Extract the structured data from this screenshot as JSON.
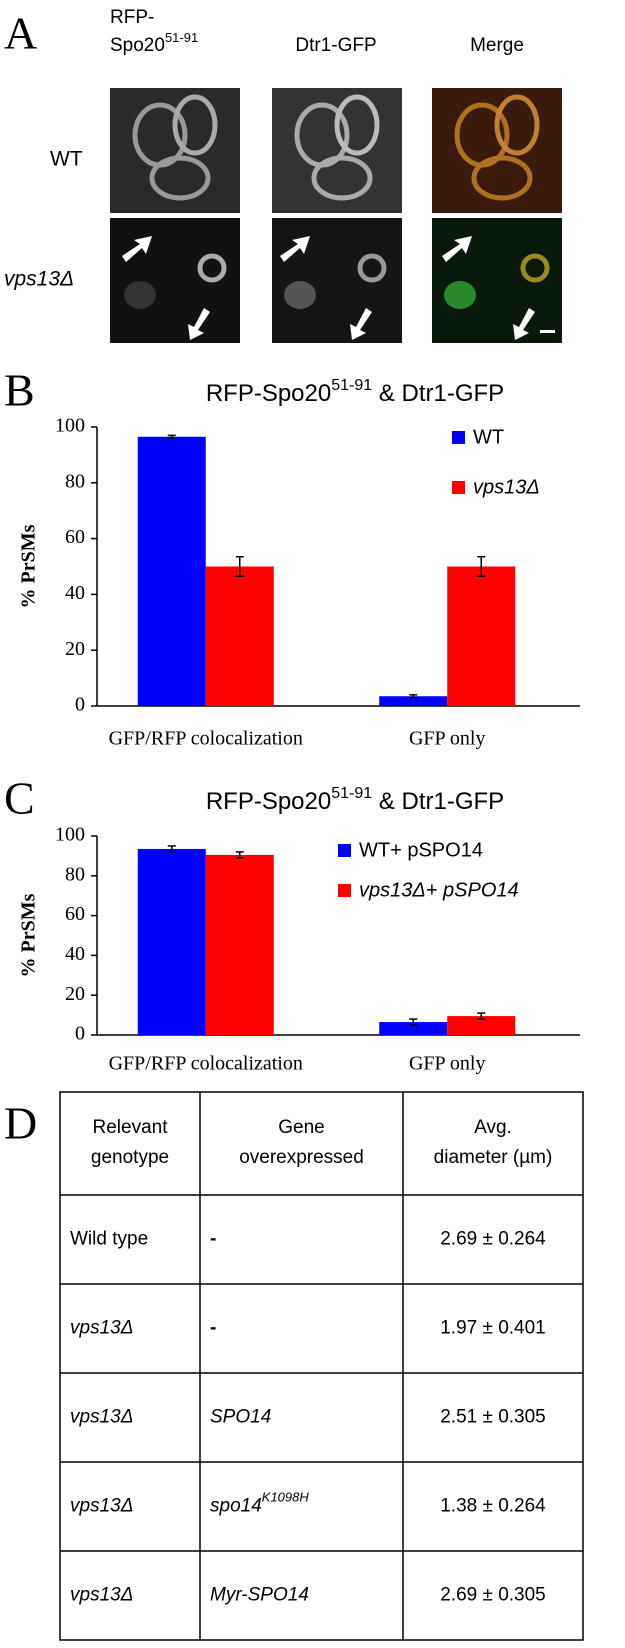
{
  "panel_a": {
    "letter": "A",
    "col1_line1": "RFP-",
    "col1_line2": "Spo20",
    "col1_sup": "51-91",
    "col2": "Dtr1-GFP",
    "col3": "Merge",
    "row1": "WT",
    "row2": "vps13Δ"
  },
  "chart_data": [
    {
      "type": "bar",
      "letter": "B",
      "title": "RFP-Spo20",
      "title_sup": "51-91",
      "title_end": " & Dtr1-GFP",
      "y_label": "% PrSMs",
      "categories": [
        "GFP/RFP colocalization",
        "GFP only"
      ],
      "series": [
        {
          "name": "WT",
          "color": "#0000ff",
          "values": [
            96.5,
            3.5
          ],
          "errors": [
            0.5,
            0.5
          ]
        },
        {
          "name": "vps13Δ",
          "color": "#ff0000",
          "values": [
            50,
            50
          ],
          "errors": [
            3.5,
            3.5
          ]
        }
      ],
      "ylim": [
        0,
        100
      ],
      "yticks": [
        0,
        20,
        40,
        60,
        80,
        100
      ],
      "legend": "upper right"
    },
    {
      "type": "bar",
      "letter": "C",
      "title": "RFP-Spo20",
      "title_sup": "51-91",
      "title_end": " & Dtr1-GFP",
      "y_label": "% PrSMs",
      "categories": [
        "GFP/RFP colocalization",
        "GFP only"
      ],
      "series": [
        {
          "name": "WT+ pSPO14",
          "color": "#0000ff",
          "values": [
            93.5,
            6.5
          ],
          "errors": [
            1.5,
            1.5
          ]
        },
        {
          "name": "vps13Δ+ pSPO14",
          "color": "#ff0000",
          "values": [
            90.5,
            9.5
          ],
          "errors": [
            1.5,
            1.5
          ]
        }
      ],
      "ylim": [
        0,
        100
      ],
      "yticks": [
        0,
        20,
        40,
        60,
        80,
        100
      ],
      "legend": "upper right"
    }
  ],
  "panel_d": {
    "letter": "D",
    "header": [
      [
        "Relevant",
        "genotype"
      ],
      [
        "Gene",
        "overexpressed"
      ],
      [
        "Avg.",
        "diameter (µm)"
      ]
    ],
    "rows": [
      {
        "genotype": "Wild type",
        "gene": "-",
        "diameter": "2.69 ± 0.264"
      },
      {
        "genotype": "vps13Δ",
        "gene": "-",
        "diameter": "1.97 ± 0.401"
      },
      {
        "genotype": "vps13Δ",
        "gene": "SPO14",
        "diameter": "2.51 ± 0.305"
      },
      {
        "genotype": "vps13Δ",
        "gene": "spo14",
        "gene_sup": "K1098H",
        "diameter": "1.38 ± 0.264"
      },
      {
        "genotype": "vps13Δ",
        "gene": "Myr-SPO14",
        "diameter": "2.69 ± 0.305"
      }
    ]
  }
}
